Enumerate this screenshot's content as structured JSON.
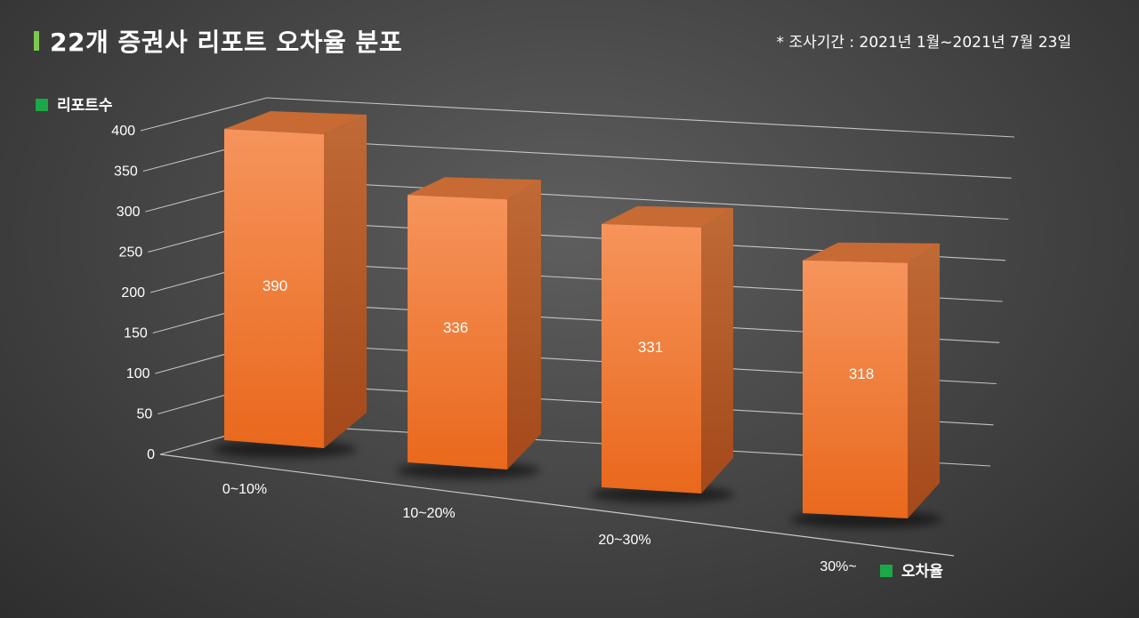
{
  "header": {
    "title": "22개 증권사 리포트 오차율 분포",
    "note": "* 조사기간 : 2021년 1월~2021년 7월 23일"
  },
  "colors": {
    "accent_bar": "#7ec850",
    "legend_square": "#1aa848",
    "bar_front_top": "#f6945c",
    "bar_front_bottom": "#e9681c",
    "bar_side": "#b4551f",
    "bar_top": "#c76a34",
    "grid": "#d8d8d8",
    "text": "#ffffff"
  },
  "chart_data": {
    "type": "bar",
    "title": "22개 증권사 리포트 오차율 분포",
    "categories": [
      "0~10%",
      "10~20%",
      "20~30%",
      "30%~"
    ],
    "values": [
      390,
      336,
      331,
      318
    ],
    "ylabel": "리포트수",
    "xlabel": "오차율",
    "ylim": [
      0,
      400
    ],
    "yticks": [
      0,
      50,
      100,
      150,
      200,
      250,
      300,
      350,
      400
    ],
    "data_labels": true,
    "grid": true,
    "style": "3d-bar"
  }
}
